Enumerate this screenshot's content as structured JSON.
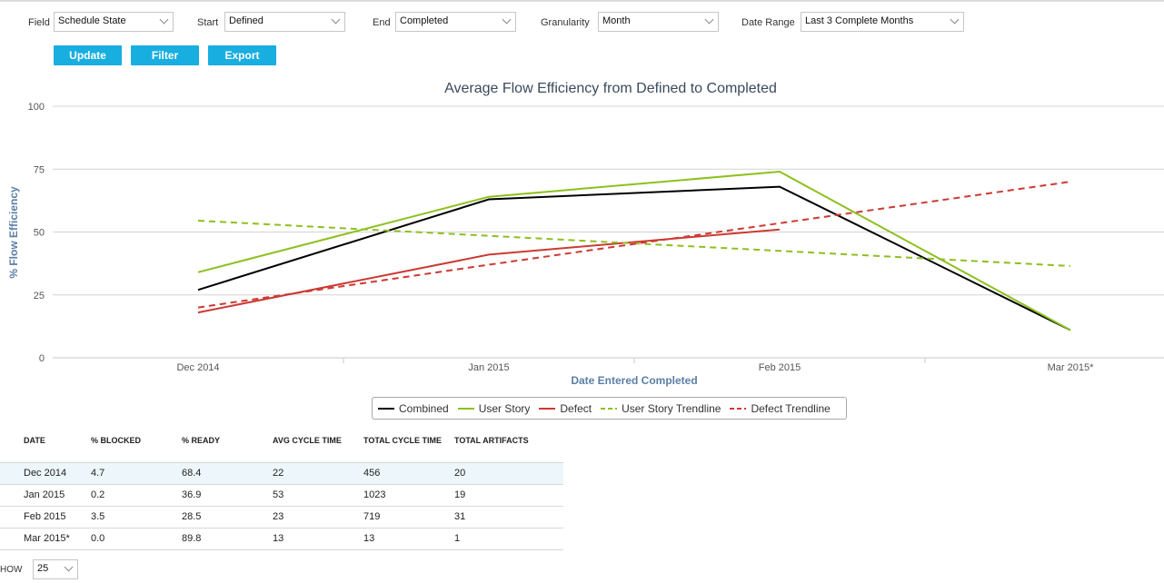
{
  "controls": {
    "field": {
      "label": "Field",
      "value": "Schedule State"
    },
    "start": {
      "label": "Start",
      "value": "Defined"
    },
    "end": {
      "label": "End",
      "value": "Completed"
    },
    "granularity": {
      "label": "Granularity",
      "value": "Month"
    },
    "date_range": {
      "label": "Date Range",
      "value": "Last 3 Complete Months"
    }
  },
  "buttons": {
    "update": "Update",
    "filter": "Filter",
    "export": "Export"
  },
  "chart_data": {
    "type": "line",
    "title": "Average Flow Efficiency from Defined to Completed",
    "xlabel": "Date Entered Completed",
    "ylabel": "% Flow Efficiency",
    "categories": [
      "Dec 2014",
      "Jan 2015",
      "Feb 2015",
      "Mar 2015*"
    ],
    "ylim": [
      0,
      100
    ],
    "yticks": [
      0,
      25,
      50,
      75,
      100
    ],
    "grid": true,
    "legend_position": "bottom",
    "series": [
      {
        "name": "Combined",
        "values": [
          27,
          63,
          68,
          11
        ],
        "color": "#000000",
        "dash": false
      },
      {
        "name": "User Story",
        "values": [
          34,
          64,
          74,
          11
        ],
        "color": "#8dc01e",
        "dash": false
      },
      {
        "name": "Defect",
        "values": [
          18,
          41,
          51,
          null
        ],
        "color": "#cc3a33",
        "dash": false
      },
      {
        "name": "User Story Trendline",
        "values": [
          54.5,
          48.5,
          42.5,
          36.5
        ],
        "color": "#8dc01e",
        "dash": true
      },
      {
        "name": "Defect Trendline",
        "values": [
          20,
          37,
          53.5,
          70
        ],
        "color": "#cc3a33",
        "dash": true
      }
    ]
  },
  "table": {
    "headers": [
      "DATE",
      "% BLOCKED",
      "% READY",
      "AVG CYCLE TIME",
      "TOTAL CYCLE TIME",
      "TOTAL ARTIFACTS"
    ],
    "rows": [
      [
        "Dec 2014",
        "4.7",
        "68.4",
        "22",
        "456",
        "20"
      ],
      [
        "Jan 2015",
        "0.2",
        "36.9",
        "53",
        "1023",
        "19"
      ],
      [
        "Feb 2015",
        "3.5",
        "28.5",
        "23",
        "719",
        "31"
      ],
      [
        "Mar 2015*",
        "0.0",
        "89.8",
        "13",
        "13",
        "1"
      ]
    ]
  },
  "pager": {
    "show_label": "HOW",
    "show_value": "25"
  }
}
